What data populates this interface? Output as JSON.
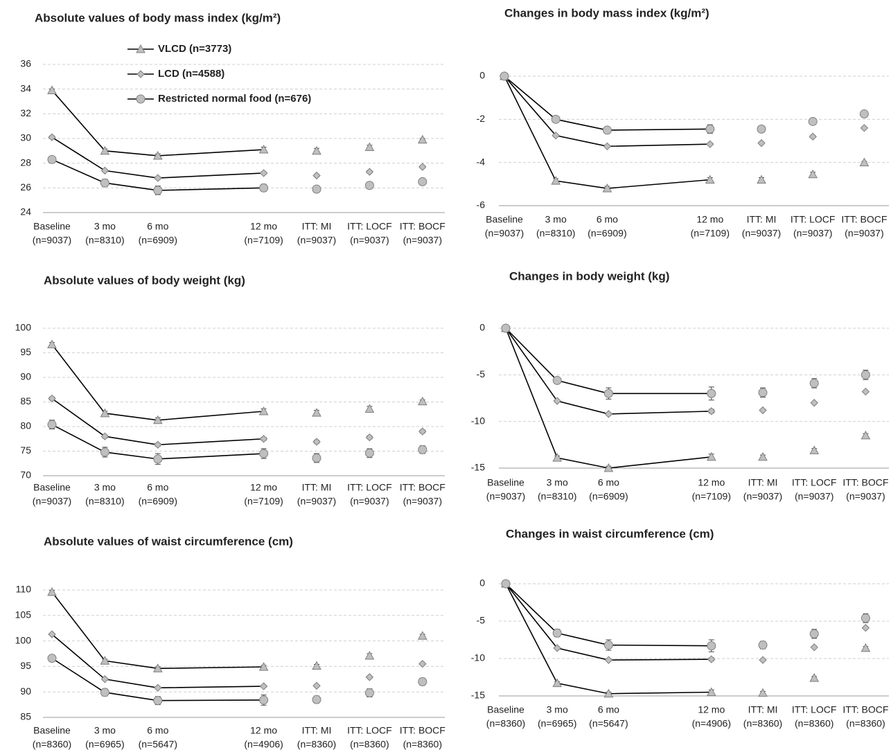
{
  "chart_data": [
    {
      "type": "line",
      "title": "Absolute values of body mass index (kg/m²)",
      "categories": [
        "Baseline",
        "3 mo",
        "6 mo",
        "12 mo",
        "ITT: MI",
        "ITT: LOCF",
        "ITT: BOCF"
      ],
      "n_labels": [
        "(n=9037)",
        "(n=8310)",
        "(n=6909)",
        "(n=7109)",
        "(n=9037)",
        "(n=9037)",
        "(n=9037)"
      ],
      "series": [
        {
          "name": "VLCD (n=3773)",
          "marker": "triangle",
          "color": "#bfbfbf",
          "values": [
            33.9,
            29.0,
            28.6,
            29.1,
            29.0,
            29.3,
            29.9
          ],
          "errors": [
            0.1,
            0.15,
            0.15,
            0.2,
            0.2,
            0.15,
            0.1
          ]
        },
        {
          "name": "LCD (n=4588)",
          "marker": "diamond",
          "color": "#bfbfbf",
          "values": [
            30.1,
            27.4,
            26.8,
            27.2,
            27.0,
            27.3,
            27.7
          ],
          "errors": [
            0.1,
            0.1,
            0.1,
            0.1,
            0.1,
            0.1,
            0.1
          ]
        },
        {
          "name": "Restricted normal food (n=676)",
          "marker": "circle",
          "color": "#bfbfbf",
          "values": [
            28.3,
            26.4,
            25.8,
            26.0,
            25.9,
            26.2,
            26.5
          ],
          "errors": [
            0.2,
            0.3,
            0.35,
            0.3,
            0.25,
            0.25,
            0.2
          ]
        }
      ],
      "ylim": [
        24,
        36
      ],
      "yticks": [
        24,
        26,
        28,
        30,
        32,
        34,
        36
      ],
      "grid": true,
      "line_color": "#000000"
    },
    {
      "type": "line",
      "title": "Changes in body mass index (kg/m²)",
      "categories": [
        "Baseline",
        "3 mo",
        "6 mo",
        "12 mo",
        "ITT: MI",
        "ITT: LOCF",
        "ITT: BOCF"
      ],
      "n_labels": [
        "(n=9037)",
        "(n=8310)",
        "(n=6909)",
        "(n=7109)",
        "(n=9037)",
        "(n=9037)",
        "(n=9037)"
      ],
      "series": [
        {
          "marker": "triangle",
          "color": "#bfbfbf",
          "values": [
            0,
            -4.85,
            -5.2,
            -4.8,
            -4.8,
            -4.55,
            -4.0
          ],
          "errors": [
            0,
            0.1,
            0.1,
            0.1,
            0.1,
            0.1,
            0.05
          ]
        },
        {
          "marker": "diamond",
          "color": "#bfbfbf",
          "values": [
            0,
            -2.75,
            -3.25,
            -3.15,
            -3.1,
            -2.8,
            -2.4
          ],
          "errors": [
            0,
            0.05,
            0.05,
            0.05,
            0.05,
            0.05,
            0.05
          ]
        },
        {
          "marker": "circle",
          "color": "#bfbfbf",
          "values": [
            0,
            -2.0,
            -2.5,
            -2.45,
            -2.45,
            -2.1,
            -1.75
          ],
          "errors": [
            0,
            0.1,
            0.15,
            0.2,
            0.15,
            0.15,
            0.1
          ]
        }
      ],
      "ylim": [
        -6,
        0
      ],
      "yticks": [
        -6,
        -4,
        -2,
        0
      ],
      "grid": true,
      "line_color": "#000000"
    },
    {
      "type": "line",
      "title": "Absolute values of body weight (kg)",
      "categories": [
        "Baseline",
        "3 mo",
        "6 mo",
        "12 mo",
        "ITT: MI",
        "ITT: LOCF",
        "ITT: BOCF"
      ],
      "n_labels": [
        "(n=9037)",
        "(n=8310)",
        "(n=6909)",
        "(n=7109)",
        "(n=9037)",
        "(n=9037)",
        "(n=9037)"
      ],
      "series": [
        {
          "marker": "triangle",
          "color": "#bfbfbf",
          "values": [
            96.7,
            82.7,
            81.3,
            83.1,
            82.8,
            83.6,
            85.1
          ],
          "errors": [
            0.4,
            0.4,
            0.5,
            0.5,
            0.5,
            0.5,
            0.3
          ]
        },
        {
          "marker": "diamond",
          "color": "#bfbfbf",
          "values": [
            85.7,
            78.0,
            76.3,
            77.5,
            76.9,
            77.8,
            79.0
          ],
          "errors": [
            0.3,
            0.3,
            0.3,
            0.3,
            0.3,
            0.3,
            0.3
          ]
        },
        {
          "marker": "circle",
          "color": "#bfbfbf",
          "values": [
            80.4,
            74.8,
            73.4,
            74.5,
            73.6,
            74.6,
            75.3
          ],
          "errors": [
            0.9,
            1.0,
            1.1,
            1.0,
            0.9,
            0.9,
            0.8
          ]
        }
      ],
      "ylim": [
        70,
        100
      ],
      "yticks": [
        70,
        75,
        80,
        85,
        90,
        95,
        100
      ],
      "grid": true,
      "line_color": "#000000"
    },
    {
      "type": "line",
      "title": "Changes in body weight (kg)",
      "categories": [
        "Baseline",
        "3 mo",
        "6 mo",
        "12 mo",
        "ITT: MI",
        "ITT: LOCF",
        "ITT: BOCF"
      ],
      "n_labels": [
        "(n=9037)",
        "(n=8310)",
        "(n=6909)",
        "(n=7109)",
        "(n=9037)",
        "(n=9037)",
        "(n=9037)"
      ],
      "series": [
        {
          "marker": "triangle",
          "color": "#bfbfbf",
          "values": [
            0,
            -13.9,
            -15.0,
            -13.8,
            -13.8,
            -13.1,
            -11.5
          ],
          "errors": [
            0,
            0.2,
            0.2,
            0.3,
            0.2,
            0.2,
            0.2
          ]
        },
        {
          "marker": "diamond",
          "color": "#bfbfbf",
          "values": [
            0,
            -7.8,
            -9.2,
            -8.9,
            -8.8,
            -8.0,
            -6.8
          ],
          "errors": [
            0,
            0.1,
            0.1,
            0.2,
            0.1,
            0.1,
            0.1
          ]
        },
        {
          "marker": "circle",
          "color": "#bfbfbf",
          "values": [
            0,
            -5.6,
            -7.0,
            -7.0,
            -6.9,
            -5.9,
            -5.0
          ],
          "errors": [
            0,
            0.3,
            0.6,
            0.7,
            0.5,
            0.5,
            0.5
          ]
        }
      ],
      "ylim": [
        -15,
        0
      ],
      "yticks": [
        -15,
        -10,
        -5,
        0
      ],
      "grid": true,
      "line_color": "#000000"
    },
    {
      "type": "line",
      "title": "Absolute values of waist circumference (cm)",
      "categories": [
        "Baseline",
        "3 mo",
        "6 mo",
        "12 mo",
        "ITT: MI",
        "ITT: LOCF",
        "ITT: BOCF"
      ],
      "n_labels": [
        "(n=8360)",
        "(n=6965)",
        "(n=5647)",
        "(n=4906)",
        "(n=8360)",
        "(n=8360)",
        "(n=8360)"
      ],
      "series": [
        {
          "marker": "triangle",
          "color": "#bfbfbf",
          "values": [
            109.6,
            96.1,
            94.6,
            94.9,
            95.1,
            97.1,
            101.0
          ],
          "errors": [
            0.3,
            0.3,
            0.3,
            0.3,
            0.3,
            0.4,
            0.3
          ]
        },
        {
          "marker": "diamond",
          "color": "#bfbfbf",
          "values": [
            101.3,
            92.5,
            90.8,
            91.1,
            91.2,
            92.9,
            95.5
          ],
          "errors": [
            0.2,
            0.2,
            0.2,
            0.2,
            0.2,
            0.2,
            0.2
          ]
        },
        {
          "marker": "circle",
          "color": "#bfbfbf",
          "values": [
            96.6,
            89.9,
            88.3,
            88.4,
            88.5,
            89.8,
            92.0
          ],
          "errors": [
            0.5,
            0.7,
            0.8,
            1.0,
            0.7,
            0.8,
            0.7
          ]
        }
      ],
      "ylim": [
        85,
        110
      ],
      "yticks": [
        85,
        90,
        95,
        100,
        105,
        110
      ],
      "grid": true,
      "line_color": "#000000"
    },
    {
      "type": "line",
      "title": "Changes in waist circumference (cm)",
      "categories": [
        "Baseline",
        "3 mo",
        "6 mo",
        "12 mo",
        "ITT: MI",
        "ITT: LOCF",
        "ITT: BOCF"
      ],
      "n_labels": [
        "(n=8360)",
        "(n=6965)",
        "(n=5647)",
        "(n=4906)",
        "(n=8360)",
        "(n=8360)",
        "(n=8360)"
      ],
      "series": [
        {
          "marker": "triangle",
          "color": "#bfbfbf",
          "values": [
            0,
            -13.3,
            -14.7,
            -14.5,
            -14.6,
            -12.6,
            -8.6
          ],
          "errors": [
            0,
            0.2,
            0.2,
            0.3,
            0.2,
            0.2,
            0.2
          ]
        },
        {
          "marker": "diamond",
          "color": "#bfbfbf",
          "values": [
            0,
            -8.6,
            -10.2,
            -10.1,
            -10.2,
            -8.5,
            -5.9
          ],
          "errors": [
            0,
            0.1,
            0.1,
            0.2,
            0.1,
            0.1,
            0.1
          ]
        },
        {
          "marker": "circle",
          "color": "#bfbfbf",
          "values": [
            0,
            -6.6,
            -8.2,
            -8.3,
            -8.2,
            -6.7,
            -4.6
          ],
          "errors": [
            0,
            0.5,
            0.7,
            0.8,
            0.5,
            0.6,
            0.6
          ]
        }
      ],
      "ylim": [
        -15,
        0
      ],
      "yticks": [
        -15,
        -10,
        -5,
        0
      ],
      "grid": true,
      "line_color": "#000000"
    }
  ]
}
